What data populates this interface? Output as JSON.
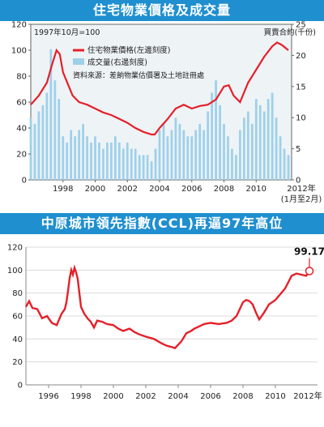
{
  "chart_data": [
    {
      "type": "line",
      "title": "住宅物業價格及成交量",
      "subtitle": "1997年10月=100",
      "ylabel_right": "買賣合約(千份)",
      "legend": [
        "住宅物業價格(左邊刻度)",
        "成交量(右邊刻度)"
      ],
      "source": "資料來源：差餉物業估價署及土地註冊處",
      "xlabel": "2012年",
      "xlabel_note": "(1月至2月)",
      "left_ticks": [
        "0",
        "20",
        "40",
        "60",
        "80",
        "100",
        "120"
      ],
      "right_ticks": [
        "0",
        "5",
        "10",
        "15",
        "20",
        "25"
      ],
      "x_ticks": [
        "1998",
        "2000",
        "2002",
        "2004",
        "2006",
        "2008",
        "2010"
      ],
      "ylim_left": [
        0,
        120
      ],
      "ylim_right": [
        0,
        25
      ],
      "series": [
        {
          "name": "住宅物業價格(左邊刻度)",
          "color": "#e5202a",
          "x": [
            1996.0,
            1996.5,
            1997.0,
            1997.3,
            1997.6,
            1997.8,
            1998.0,
            1998.3,
            1998.6,
            1999.0,
            1999.5,
            2000.0,
            2000.5,
            2001.0,
            2001.5,
            2002.0,
            2002.5,
            2003.0,
            2003.5,
            2003.7,
            2004.0,
            2004.5,
            2005.0,
            2005.5,
            2006.0,
            2006.5,
            2007.0,
            2007.5,
            2008.0,
            2008.3,
            2008.6,
            2009.0,
            2009.5,
            2010.0,
            2010.5,
            2011.0,
            2011.3,
            2011.6,
            2012.0
          ],
          "values": [
            58,
            65,
            75,
            88,
            100,
            97,
            83,
            74,
            65,
            60,
            58,
            55,
            52,
            50,
            47,
            44,
            40,
            37,
            35,
            35,
            40,
            47,
            55,
            58,
            55,
            57,
            58,
            62,
            72,
            73,
            65,
            60,
            75,
            85,
            95,
            103,
            106,
            104,
            100
          ]
        },
        {
          "name": "成交量(右邊刻度)",
          "type": "bar",
          "color": "#9ed0ea",
          "x": [
            1996.0,
            1996.25,
            1996.5,
            1996.75,
            1997.0,
            1997.25,
            1997.5,
            1997.75,
            1998.0,
            1998.25,
            1998.5,
            1998.75,
            1999.0,
            1999.25,
            1999.5,
            1999.75,
            2000.0,
            2000.25,
            2000.5,
            2000.75,
            2001.0,
            2001.25,
            2001.5,
            2001.75,
            2002.0,
            2002.25,
            2002.5,
            2002.75,
            2003.0,
            2003.25,
            2003.5,
            2003.75,
            2004.0,
            2004.25,
            2004.5,
            2004.75,
            2005.0,
            2005.25,
            2005.5,
            2005.75,
            2006.0,
            2006.25,
            2006.5,
            2006.75,
            2007.0,
            2007.25,
            2007.5,
            2007.75,
            2008.0,
            2008.25,
            2008.5,
            2008.75,
            2009.0,
            2009.25,
            2009.5,
            2009.75,
            2010.0,
            2010.25,
            2010.5,
            2010.75,
            2011.0,
            2011.25,
            2011.5,
            2011.75,
            2012.0
          ],
          "values": [
            10,
            9,
            11,
            12,
            14,
            21,
            16,
            13,
            7,
            6,
            8,
            7,
            8,
            9,
            7,
            6,
            7,
            6,
            5,
            6,
            6,
            7,
            6,
            5,
            6,
            5,
            5,
            4,
            4,
            4,
            3,
            5,
            8,
            9,
            7,
            8,
            10,
            9,
            8,
            7,
            7,
            8,
            9,
            8,
            11,
            14,
            16,
            12,
            9,
            7,
            5,
            4,
            8,
            10,
            11,
            9,
            13,
            12,
            11,
            13,
            14,
            10,
            7,
            5,
            4
          ]
        }
      ]
    },
    {
      "type": "line",
      "title": "中原城市領先指數(CCL)再逼97年高位",
      "annotation": "99.17",
      "xlabel": "2012年",
      "y_ticks": [
        "0",
        "20",
        "40",
        "60",
        "80",
        "100",
        "120"
      ],
      "x_ticks": [
        "1996",
        "1998",
        "2000",
        "2002",
        "2004",
        "2006",
        "2008",
        "2010"
      ],
      "ylim": [
        0,
        120
      ],
      "series": [
        {
          "name": "CCL",
          "color": "#e5202a",
          "x": [
            1994.6,
            1994.8,
            1995.0,
            1995.3,
            1995.6,
            1995.9,
            1996.2,
            1996.5,
            1996.8,
            1997.0,
            1997.1,
            1997.2,
            1997.3,
            1997.4,
            1997.5,
            1997.6,
            1997.7,
            1997.8,
            1997.9,
            1998.0,
            1998.2,
            1998.4,
            1998.6,
            1998.8,
            1999.0,
            1999.3,
            1999.6,
            2000.0,
            2000.3,
            2000.6,
            2001.0,
            2001.3,
            2001.6,
            2002.0,
            2002.5,
            2003.0,
            2003.3,
            2003.6,
            2003.8,
            2004.0,
            2004.2,
            2004.5,
            2004.8,
            2005.0,
            2005.3,
            2005.6,
            2006.0,
            2006.5,
            2007.0,
            2007.3,
            2007.6,
            2007.8,
            2008.0,
            2008.2,
            2008.4,
            2008.6,
            2008.8,
            2009.0,
            2009.3,
            2009.6,
            2010.0,
            2010.3,
            2010.6,
            2011.0,
            2011.3,
            2011.6,
            2011.9,
            2012.1
          ],
          "values": [
            68,
            73,
            67,
            66,
            58,
            60,
            54,
            52,
            62,
            66,
            72,
            82,
            93,
            100,
            96,
            102,
            98,
            92,
            80,
            68,
            62,
            58,
            55,
            50,
            56,
            55,
            53,
            52,
            49,
            47,
            49,
            46,
            44,
            42,
            40,
            36,
            34,
            33,
            32,
            35,
            38,
            45,
            47,
            49,
            51,
            53,
            54,
            53,
            54,
            56,
            60,
            66,
            72,
            74,
            73,
            70,
            63,
            57,
            63,
            70,
            74,
            79,
            84,
            95,
            97,
            96,
            95,
            99.17
          ]
        }
      ]
    }
  ]
}
